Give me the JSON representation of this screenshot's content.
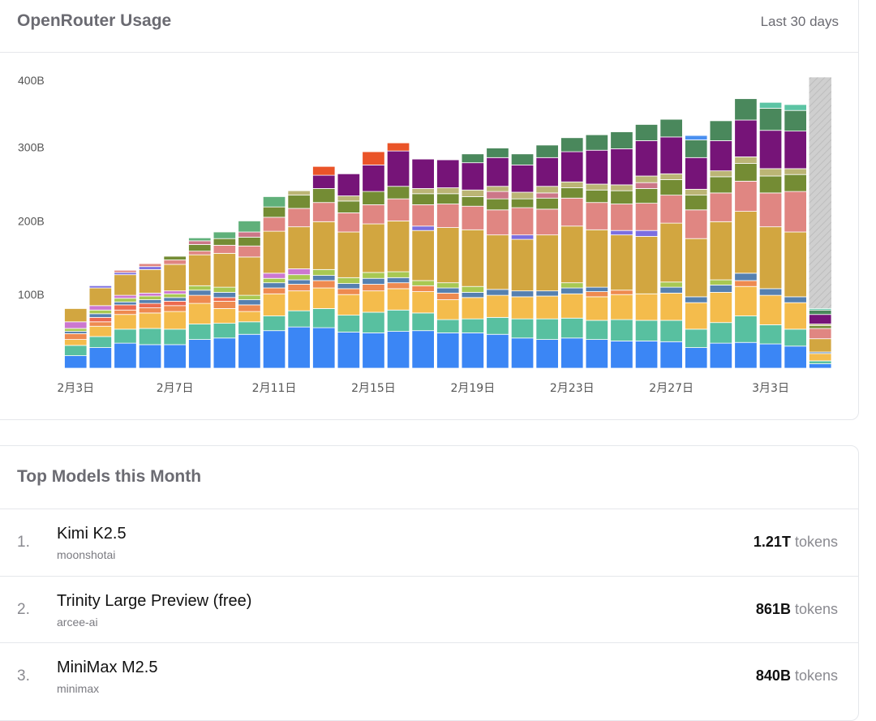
{
  "usage": {
    "title": "OpenRouter Usage",
    "range_label": "Last 30 days"
  },
  "top_models": {
    "title": "Top Models this Month",
    "unit_label": "tokens",
    "items": [
      {
        "rank": "1.",
        "name": "Kimi K2.5",
        "author": "moonshotai",
        "tokens": "1.21T"
      },
      {
        "rank": "2.",
        "name": "Trinity Large Preview (free)",
        "author": "arcee-ai",
        "tokens": "861B"
      },
      {
        "rank": "3.",
        "name": "MiniMax M2.5",
        "author": "minimax",
        "tokens": "840B"
      }
    ]
  },
  "chart_data": {
    "type": "bar",
    "stacked": true,
    "unit": "B tokens",
    "ylim": [
      0,
      400
    ],
    "y_ticks": [
      {
        "value": 100,
        "label": "100B"
      },
      {
        "value": 200,
        "label": "200B"
      },
      {
        "value": 300,
        "label": "300B"
      },
      {
        "value": 400,
        "label": "400B"
      }
    ],
    "grid": false,
    "legend": "none",
    "categories": [
      "2月3日",
      "2月4日",
      "2月5日",
      "2月6日",
      "2月7日",
      "2月8日",
      "2月9日",
      "2月10日",
      "2月11日",
      "2月12日",
      "2月13日",
      "2月14日",
      "2月15日",
      "2月16日",
      "2月17日",
      "2月18日",
      "2月19日",
      "2月20日",
      "2月21日",
      "2月22日",
      "2月23日",
      "2月24日",
      "2月25日",
      "2月26日",
      "2月27日",
      "2月28日",
      "3月1日",
      "3月2日",
      "3月3日",
      "3月4日",
      "3月5日"
    ],
    "x_tick_labels": [
      "2月3日",
      "2月7日",
      "2月11日",
      "2月15日",
      "2月19日",
      "2月23日",
      "2月27日",
      "3月3日"
    ],
    "projected_total_last_bar": 395,
    "projected_color": "#cfcfcf",
    "series": [
      {
        "color": "#3b86f5",
        "values": [
          17,
          28,
          34,
          32,
          32,
          39,
          41,
          46,
          51,
          56,
          55,
          49,
          48,
          50,
          51,
          48,
          48,
          46,
          41,
          39,
          41,
          39,
          37,
          37,
          36,
          28,
          34,
          35,
          33,
          30,
          6
        ]
      },
      {
        "color": "#58c0a0",
        "values": [
          14,
          15,
          19,
          22,
          21,
          21,
          20,
          17,
          20,
          22,
          26,
          23,
          28,
          29,
          24,
          18,
          19,
          23,
          26,
          28,
          27,
          26,
          29,
          28,
          29,
          25,
          28,
          36,
          26,
          23,
          4
        ]
      },
      {
        "color": "#f4bc4c",
        "values": [
          8,
          14,
          20,
          21,
          24,
          28,
          20,
          14,
          30,
          27,
          28,
          28,
          29,
          29,
          29,
          27,
          29,
          30,
          30,
          31,
          33,
          32,
          34,
          36,
          37,
          36,
          41,
          40,
          40,
          36,
          10
        ]
      },
      {
        "color": "#ee8a50",
        "values": [
          8,
          6,
          6,
          7,
          8,
          11,
          10,
          9,
          8,
          9,
          10,
          8,
          9,
          8,
          8,
          9,
          0,
          0,
          0,
          0,
          0,
          7,
          6,
          0,
          0,
          0,
          0,
          8,
          0,
          0,
          0
        ]
      },
      {
        "color": "#ec6a50",
        "values": [
          0,
          6,
          7,
          6,
          6,
          0,
          5,
          0,
          0,
          0,
          0,
          0,
          0,
          0,
          0,
          0,
          0,
          0,
          0,
          0,
          0,
          0,
          0,
          0,
          0,
          0,
          0,
          0,
          0,
          0,
          0
        ]
      },
      {
        "color": "#5580b0",
        "values": [
          3,
          5,
          4,
          5,
          5,
          7,
          7,
          7,
          7,
          6,
          7,
          7,
          8,
          7,
          0,
          7,
          7,
          8,
          8,
          7,
          8,
          6,
          0,
          0,
          8,
          8,
          10,
          10,
          9,
          8,
          2
        ]
      },
      {
        "color": "#a8c852",
        "values": [
          4,
          5,
          5,
          5,
          5,
          6,
          7,
          6,
          6,
          7,
          8,
          8,
          8,
          8,
          7,
          7,
          8,
          0,
          0,
          0,
          7,
          0,
          0,
          0,
          7,
          0,
          7,
          0,
          0,
          0,
          0
        ]
      },
      {
        "color": "#cc77d0",
        "values": [
          9,
          6,
          4,
          4,
          4,
          0,
          0,
          0,
          7,
          8,
          0,
          0,
          0,
          0,
          0,
          0,
          0,
          0,
          0,
          0,
          0,
          0,
          0,
          0,
          0,
          0,
          0,
          0,
          0,
          0,
          0
        ]
      },
      {
        "color": "#d2a640",
        "values": [
          18,
          24,
          28,
          32,
          36,
          42,
          46,
          52,
          57,
          57,
          65,
          62,
          66,
          69,
          68,
          75,
          77,
          74,
          70,
          76,
          77,
          78,
          75,
          78,
          80,
          79,
          79,
          84,
          84,
          88,
          18
        ]
      },
      {
        "color": "#7b6ee0",
        "values": [
          0,
          3,
          3,
          4,
          0,
          0,
          0,
          0,
          0,
          0,
          0,
          0,
          0,
          0,
          6,
          0,
          0,
          0,
          6,
          0,
          0,
          0,
          6,
          8,
          0,
          0,
          0,
          0,
          0,
          0,
          0
        ]
      },
      {
        "color": "#e08682",
        "values": [
          0,
          0,
          3,
          4,
          6,
          5,
          11,
          15,
          19,
          25,
          26,
          26,
          26,
          30,
          29,
          32,
          32,
          34,
          37,
          35,
          38,
          37,
          36,
          37,
          38,
          39,
          39,
          41,
          46,
          55,
          14
        ]
      },
      {
        "color": "#748c34",
        "values": [
          0,
          0,
          0,
          0,
          5,
          9,
          9,
          12,
          14,
          18,
          19,
          16,
          18,
          17,
          15,
          14,
          13,
          15,
          12,
          15,
          14,
          17,
          18,
          20,
          21,
          20,
          22,
          24,
          23,
          23,
          4
        ]
      },
      {
        "color": "#cc7788",
        "values": [
          0,
          0,
          0,
          0,
          0,
          5,
          0,
          7,
          0,
          0,
          0,
          0,
          0,
          0,
          0,
          0,
          0,
          10,
          0,
          7,
          0,
          0,
          0,
          8,
          0,
          0,
          0,
          0,
          0,
          0,
          0
        ]
      },
      {
        "color": "#bbb575",
        "values": [
          0,
          0,
          0,
          0,
          0,
          0,
          0,
          0,
          0,
          6,
          0,
          7,
          0,
          0,
          7,
          8,
          9,
          7,
          9,
          9,
          8,
          8,
          8,
          9,
          8,
          8,
          8,
          9,
          10,
          8,
          2
        ]
      },
      {
        "color": "#761478",
        "values": [
          0,
          0,
          0,
          0,
          0,
          0,
          0,
          0,
          0,
          0,
          18,
          30,
          36,
          48,
          40,
          38,
          37,
          39,
          37,
          39,
          41,
          46,
          49,
          48,
          50,
          43,
          41,
          50,
          52,
          51,
          13
        ]
      },
      {
        "color": "#60b07a",
        "values": [
          0,
          0,
          0,
          0,
          0,
          4,
          9,
          15,
          14,
          0,
          0,
          0,
          0,
          0,
          0,
          0,
          0,
          0,
          0,
          0,
          0,
          0,
          0,
          0,
          0,
          0,
          0,
          0,
          0,
          0,
          0
        ]
      },
      {
        "color": "#4a885c",
        "values": [
          0,
          0,
          0,
          0,
          0,
          0,
          0,
          0,
          0,
          0,
          0,
          0,
          0,
          0,
          0,
          0,
          12,
          13,
          15,
          17,
          19,
          21,
          23,
          22,
          24,
          24,
          27,
          29,
          30,
          28,
          6
        ]
      },
      {
        "color": "#ea5428",
        "values": [
          0,
          0,
          0,
          0,
          0,
          0,
          0,
          0,
          0,
          0,
          12,
          0,
          18,
          11,
          0,
          0,
          0,
          0,
          0,
          0,
          0,
          0,
          0,
          0,
          0,
          0,
          0,
          0,
          0,
          0,
          0
        ]
      },
      {
        "color": "#5cc4a4",
        "values": [
          0,
          0,
          0,
          0,
          0,
          0,
          0,
          0,
          0,
          0,
          0,
          0,
          0,
          0,
          0,
          0,
          0,
          0,
          0,
          0,
          0,
          0,
          0,
          0,
          0,
          0,
          0,
          0,
          8,
          8,
          2
        ]
      },
      {
        "color": "#4a90f0",
        "values": [
          0,
          0,
          0,
          0,
          0,
          0,
          0,
          0,
          0,
          0,
          0,
          0,
          0,
          0,
          0,
          0,
          0,
          0,
          0,
          0,
          0,
          0,
          0,
          0,
          0,
          6,
          0,
          0,
          0,
          0,
          0
        ]
      }
    ]
  }
}
